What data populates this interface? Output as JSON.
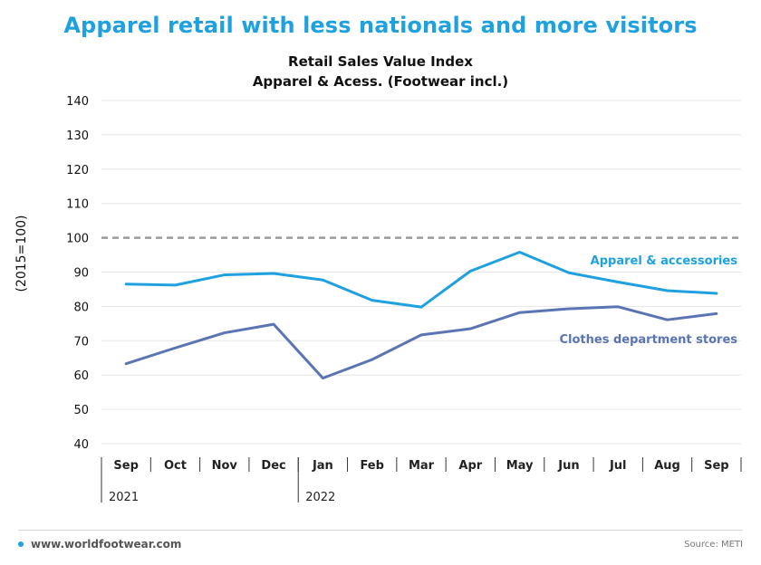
{
  "headline": "Apparel retail with less nationals and more visitors",
  "footer": {
    "site": "www.worldfootwear.com",
    "source": "Source: METI"
  },
  "colors": {
    "apparel": "#1fa1e0",
    "clothes": "#5b74b4",
    "reference": "#999999",
    "headline": "#1fa1e0"
  },
  "chart_data": {
    "type": "line",
    "title": "Retail Sales Value Index",
    "subtitle": "Apparel & Acess. (Footwear incl.)",
    "ylabel": "(2015=100)",
    "ylim": [
      40,
      140
    ],
    "yticks": [
      40,
      50,
      60,
      70,
      80,
      90,
      100,
      110,
      120,
      130,
      140
    ],
    "categories": [
      "Sep",
      "Oct",
      "Nov",
      "Dec",
      "Jan",
      "Feb",
      "Mar",
      "Apr",
      "May",
      "Jun",
      "Jul",
      "Aug",
      "Sep"
    ],
    "years": [
      {
        "label": "2021",
        "start": 0
      },
      {
        "label": "2022",
        "start": 4
      }
    ],
    "reference_line": {
      "value": 100,
      "style": "dashed"
    },
    "grid": true,
    "series": [
      {
        "name": "Apparel & accessories",
        "values": [
          86.5,
          86.2,
          89.2,
          89.6,
          87.7,
          81.8,
          79.8,
          90.3,
          95.8,
          89.8,
          87.1,
          84.6,
          83.8
        ]
      },
      {
        "name": "Clothes department stores",
        "values": [
          63.3,
          67.9,
          72.3,
          74.8,
          59.1,
          64.5,
          71.7,
          73.5,
          78.2,
          79.3,
          79.9,
          76.1,
          77.9
        ]
      }
    ]
  }
}
